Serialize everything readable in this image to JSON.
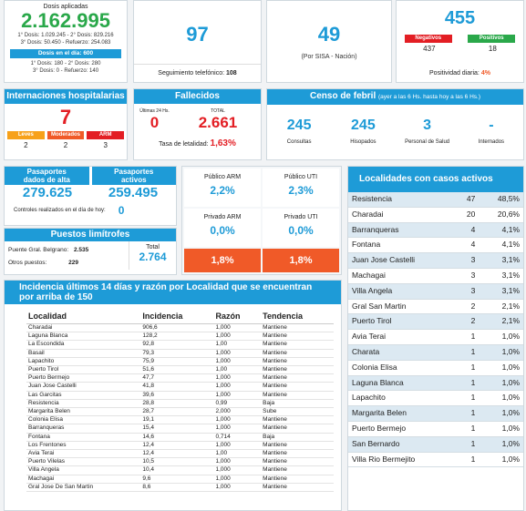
{
  "doses": {
    "title": "Dosis aplicadas",
    "total": "2.162.995",
    "line1": "1° Dosis: 1.029.245  -  2° Dosis: 829.216",
    "line2": "3° Dosis: 50.450  -  Refuerzo: 254.083",
    "day_label": "Dosis en el día: 600",
    "line3": "1° Dosis: 180  -  2° Dosis: 280",
    "line4": "3° Dosis: 0  -  Refuerzo: 140"
  },
  "followup": {
    "value": "97",
    "label": "Seguimiento telefónico:",
    "count": "108"
  },
  "sisa": {
    "value": "49",
    "label": "(Por SISA - Nación)"
  },
  "tests": {
    "total": "455",
    "neg_label": "Negativos",
    "pos_label": "Positivos",
    "neg": "437",
    "pos": "18",
    "positivity_label": "Positividad diaria:",
    "positivity": "4%"
  },
  "hosp": {
    "title": "Internaciones hospitalarias",
    "total": "7",
    "items": [
      {
        "label": "Leves",
        "value": "2",
        "color": "#f7a11a"
      },
      {
        "label": "Moderados",
        "value": "2",
        "color": "#f05a28"
      },
      {
        "label": "ARM",
        "value": "3",
        "color": "#e31e24"
      }
    ]
  },
  "deaths": {
    "title": "Fallecidos",
    "day_label": "Últimas 24 Hs.",
    "day": "0",
    "total_label": "TOTAL",
    "total": "2.661",
    "rate_label": "Tasa de letalidad:",
    "rate": "1,63%"
  },
  "census": {
    "title": "Censo de febril",
    "subtitle": "(ayer a las 6 Hs. hasta hoy a las 6 Hs.)",
    "items": [
      {
        "value": "245",
        "label": "Consultas"
      },
      {
        "value": "245",
        "label": "Hisopados"
      },
      {
        "value": "3",
        "label": "Personal de Salud"
      },
      {
        "value": "-",
        "label": "Internados"
      }
    ]
  },
  "passports": {
    "discharged_label": "Pasaportes dados de alta",
    "discharged": "279.625",
    "active_label": "Pasaportes activos",
    "active": "259.495",
    "controls_label": "Controles realizados en el día de hoy:",
    "controls": "0"
  },
  "borders": {
    "title": "Puestos limítrofes",
    "belgrano_label": "Puente Gral. Belgrano:",
    "belgrano": "2.535",
    "others_label": "Otros puestos:",
    "others": "229",
    "total_label": "Total",
    "total": "2.764"
  },
  "occupancy": {
    "items": [
      {
        "label": "Público ARM",
        "value": "2,2%"
      },
      {
        "label": "Público UTI",
        "value": "2,3%"
      },
      {
        "label": "Privado ARM",
        "value": "0,0%"
      },
      {
        "label": "Privado UTI",
        "value": "0,0%"
      }
    ],
    "bottom": [
      "1,8%",
      "1,8%"
    ]
  },
  "incidence": {
    "title": "Incidencia últimos 14 días y razón por Localidad que se encuentran por arriba de 150",
    "headers": [
      "Localidad",
      "Incidencia",
      "Razón",
      "Tendencia"
    ],
    "rows": [
      [
        "Charadai",
        "906,6",
        "1,000",
        "Mantiene"
      ],
      [
        "Laguna Blanca",
        "128,2",
        "1,000",
        "Mantiene"
      ],
      [
        "La Escondida",
        "92,8",
        "1,00",
        "Mantiene"
      ],
      [
        "Basail",
        "79,3",
        "1,000",
        "Mantiene"
      ],
      [
        "Lapachito",
        "75,9",
        "1,000",
        "Mantiene"
      ],
      [
        "Puerto Tirol",
        "51,6",
        "1,00",
        "Mantiene"
      ],
      [
        "Puerto Bermejo",
        "47,7",
        "1,000",
        "Mantiene"
      ],
      [
        "Juan Jose Castelli",
        "41,8",
        "1,000",
        "Mantiene"
      ],
      [
        "Las Garcitas",
        "39,6",
        "1,000",
        "Mantiene"
      ],
      [
        "Resistencia",
        "28,8",
        "0,99",
        "Baja"
      ],
      [
        "Margarita Belen",
        "28,7",
        "2,000",
        "Sube"
      ],
      [
        "Colonia Elisa",
        "19,1",
        "1,000",
        "Mantiene"
      ],
      [
        "Barranqueras",
        "15,4",
        "1,000",
        "Mantiene"
      ],
      [
        "Fontana",
        "14,6",
        "0,714",
        "Baja"
      ],
      [
        "Los Frentones",
        "12,4",
        "1,000",
        "Mantiene"
      ],
      [
        "Avia Terai",
        "12,4",
        "1,00",
        "Mantiene"
      ],
      [
        "Puerto Vilelas",
        "10,5",
        "1,000",
        "Mantiene"
      ],
      [
        "Villa Angela",
        "10,4",
        "1,000",
        "Mantiene"
      ],
      [
        "Machagai",
        "9,6",
        "1,000",
        "Mantiene"
      ],
      [
        "Gral Jose De San Martin",
        "8,6",
        "1,000",
        "Mantiene"
      ]
    ]
  },
  "localities": {
    "title": "Localidades con casos activos",
    "rows": [
      [
        "Resistencia",
        "47",
        "48,5%"
      ],
      [
        "Charadai",
        "20",
        "20,6%"
      ],
      [
        "Barranqueras",
        "4",
        "4,1%"
      ],
      [
        "Fontana",
        "4",
        "4,1%"
      ],
      [
        "Juan Jose Castelli",
        "3",
        "3,1%"
      ],
      [
        "Machagai",
        "3",
        "3,1%"
      ],
      [
        "Villa Angela",
        "3",
        "3,1%"
      ],
      [
        "Gral San Martin",
        "2",
        "2,1%"
      ],
      [
        "Puerto Tirol",
        "2",
        "2,1%"
      ],
      [
        "Avia Terai",
        "1",
        "1,0%"
      ],
      [
        "Charata",
        "1",
        "1,0%"
      ],
      [
        "Colonia Elisa",
        "1",
        "1,0%"
      ],
      [
        "Laguna Blanca",
        "1",
        "1,0%"
      ],
      [
        "Lapachito",
        "1",
        "1,0%"
      ],
      [
        "Margarita Belen",
        "1",
        "1,0%"
      ],
      [
        "Puerto Bermejo",
        "1",
        "1,0%"
      ],
      [
        "San Bernardo",
        "1",
        "1,0%"
      ],
      [
        "Villa Rio Bermejito",
        "1",
        "1,0%"
      ]
    ]
  }
}
